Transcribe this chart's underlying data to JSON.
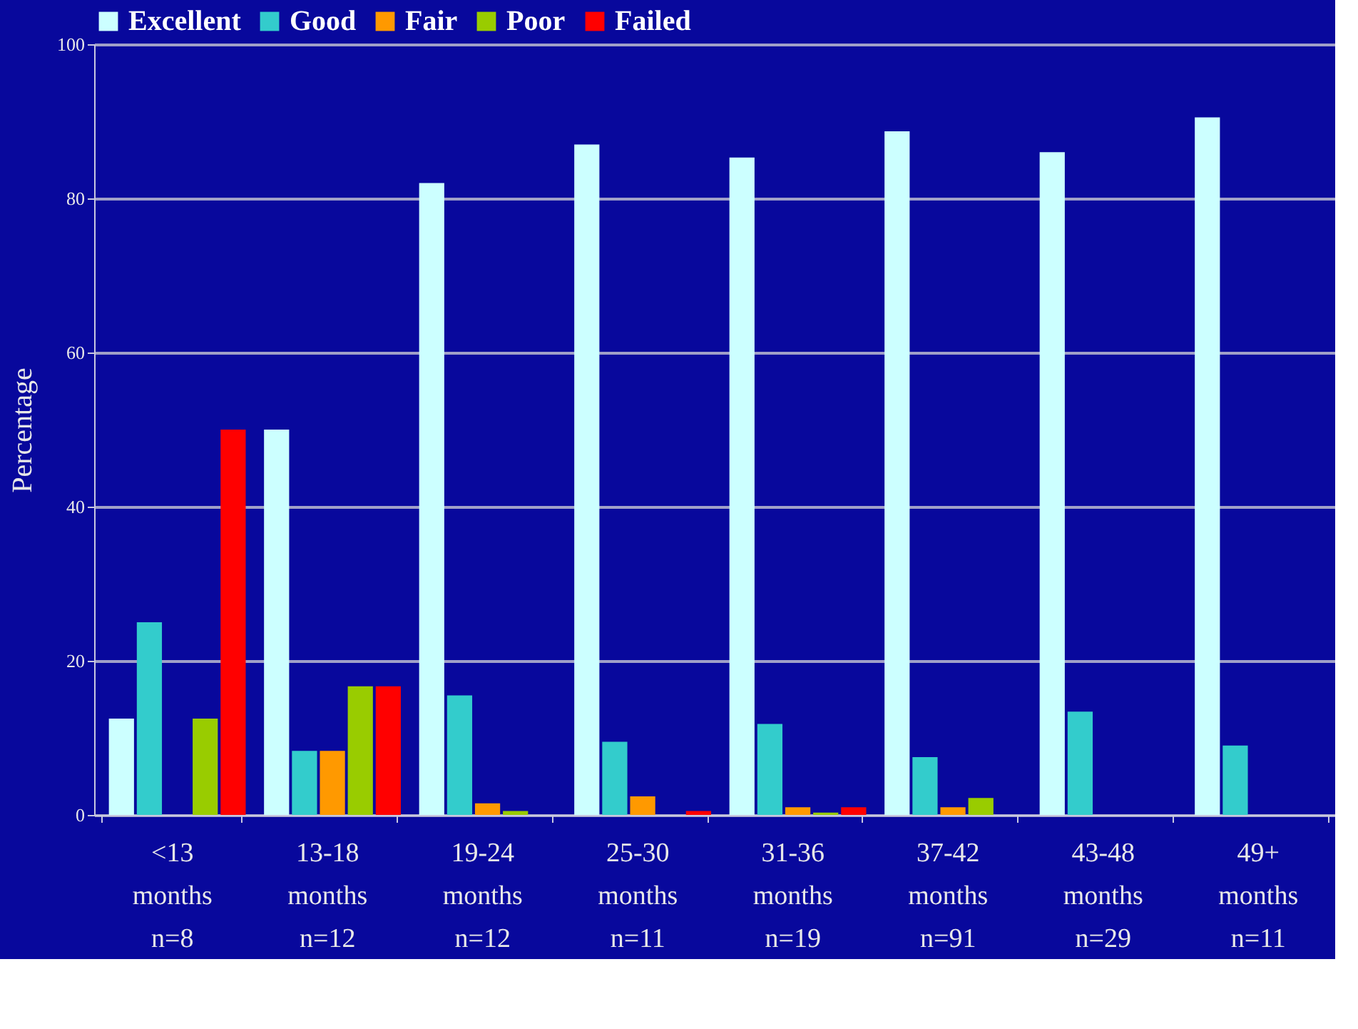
{
  "chart_data": {
    "type": "bar",
    "categories": [
      "<13\nmonths\nn=8",
      "13-18\nmonths\nn=12",
      "19-24\nmonths\nn=12",
      "25-30\nmonths\nn=11",
      "31-36\nmonths\nn=19",
      "37-42\nmonths\nn=91",
      "43-48\nmonths\nn=29",
      "49+\nmonths\nn=11"
    ],
    "series": [
      {
        "name": "Excellent",
        "color": "#ccffff",
        "values": [
          12.5,
          50,
          82,
          87,
          85.3,
          88.7,
          86,
          90.5
        ]
      },
      {
        "name": "Good",
        "color": "#33cccc",
        "values": [
          25,
          8.3,
          15.5,
          9.5,
          11.8,
          7.5,
          13.4,
          9
        ]
      },
      {
        "name": "Fair",
        "color": "#ff9900",
        "values": [
          0,
          8.3,
          1.5,
          2.4,
          1,
          1,
          0,
          0
        ]
      },
      {
        "name": "Poor",
        "color": "#99cc00",
        "values": [
          12.5,
          16.7,
          0.5,
          0,
          0.3,
          2.2,
          0,
          0
        ]
      },
      {
        "name": "Failed",
        "color": "#ff0000",
        "values": [
          50,
          16.7,
          0,
          0.5,
          1,
          0,
          0,
          0
        ]
      }
    ],
    "ylabel": "Percentage",
    "ylim": [
      0,
      100
    ],
    "yticks": [
      0,
      20,
      40,
      60,
      80,
      100
    ],
    "grid": "y",
    "legend": "top left"
  }
}
